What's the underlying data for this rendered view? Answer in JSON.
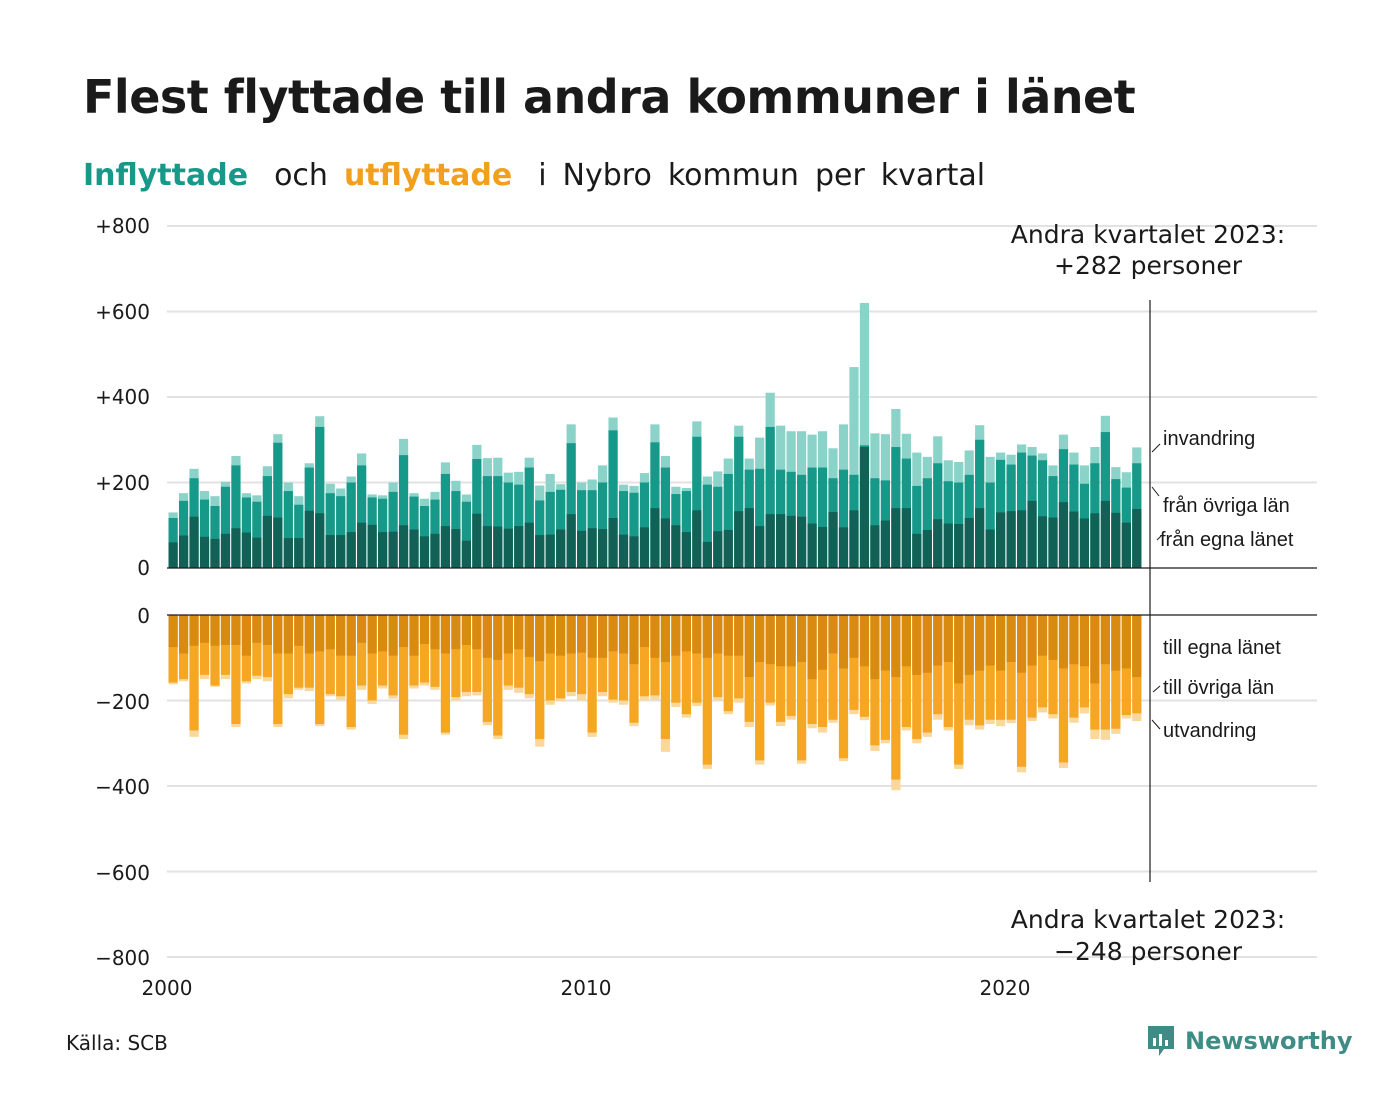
{
  "title": "Flest flyttade till andra kommuner i länet",
  "subtitle": {
    "inflyttade": "Inflyttade",
    "och": "och",
    "utflyttade": "utflyttade",
    "rest": [
      "i",
      "Nybro",
      "kommun",
      "per",
      "kvartal"
    ]
  },
  "annotations": {
    "top_line1": "Andra kvartalet 2023:",
    "top_line2": "+282 personer",
    "bottom_line1": "Andra kvartalet 2023:",
    "bottom_line2": "−248 personer"
  },
  "source": "Källa: SCB",
  "logo": "Newsworthy",
  "colors": {
    "in_egna": "#126156",
    "in_ovriga": "#17998a",
    "in_invandring": "#8bd3c8",
    "out_egna": "#d98a10",
    "out_ovriga": "#f5a623",
    "out_utvandring": "#fad79b",
    "logo": "#3e8c85"
  },
  "chart_data": {
    "type": "bar",
    "stacked": true,
    "period": "quarter",
    "x_start": "2000 Q1",
    "x_end": "2023 Q2",
    "x_ticks": [
      "2000",
      "2010",
      "2020"
    ],
    "y_ticks_upper": [
      "+800",
      "+600",
      "+400",
      "+200",
      "0"
    ],
    "y_ticks_lower": [
      "0",
      "−200",
      "−400",
      "−600",
      "−800"
    ],
    "ylim_upper": [
      0,
      800
    ],
    "ylim_lower": [
      -800,
      0
    ],
    "grid": true,
    "inflyttade": {
      "labels": [
        "från egna länet",
        "från övriga län",
        "invandring"
      ],
      "totals": [
        130,
        175,
        232,
        180,
        168,
        202,
        262,
        175,
        170,
        238,
        313,
        200,
        168,
        245,
        355,
        197,
        186,
        214,
        268,
        172,
        170,
        200,
        302,
        175,
        162,
        178,
        247,
        204,
        172,
        288,
        257,
        258,
        223,
        225,
        258,
        193,
        220,
        196,
        336,
        200,
        207,
        240,
        352,
        195,
        192,
        222,
        336,
        262,
        190,
        187,
        343,
        214,
        226,
        256,
        333,
        256,
        305,
        410,
        333,
        320,
        320,
        312,
        320,
        280,
        336,
        470,
        620,
        315,
        313,
        372,
        314,
        270,
        260,
        308,
        252,
        248,
        275,
        334,
        260,
        270,
        265,
        289,
        283,
        268,
        240,
        312,
        270,
        240,
        283,
        356,
        236,
        224,
        282
      ],
      "egna": [
        60,
        76,
        120,
        73,
        68,
        80,
        93,
        83,
        71,
        122,
        118,
        70,
        70,
        134,
        128,
        77,
        77,
        84,
        106,
        101,
        84,
        85,
        100,
        90,
        74,
        80,
        98,
        91,
        64,
        127,
        98,
        97,
        92,
        98,
        106,
        77,
        78,
        90,
        126,
        87,
        93,
        91,
        117,
        78,
        74,
        95,
        140,
        116,
        100,
        84,
        135,
        61,
        86,
        89,
        133,
        140,
        98,
        126,
        126,
        122,
        120,
        104,
        96,
        131,
        95,
        135,
        283,
        100,
        111,
        140,
        140,
        80,
        89,
        114,
        104,
        103,
        117,
        140,
        90,
        130,
        133,
        135,
        157,
        121,
        118,
        154,
        132,
        116,
        128,
        157,
        129,
        106,
        138
      ],
      "ovriga": [
        117,
        157,
        210,
        160,
        145,
        190,
        240,
        165,
        155,
        215,
        293,
        180,
        148,
        235,
        330,
        175,
        168,
        200,
        240,
        165,
        162,
        178,
        264,
        167,
        145,
        160,
        220,
        180,
        155,
        255,
        215,
        215,
        200,
        195,
        235,
        158,
        178,
        183,
        292,
        182,
        182,
        200,
        322,
        180,
        176,
        200,
        294,
        235,
        173,
        180,
        307,
        195,
        190,
        220,
        307,
        230,
        232,
        330,
        230,
        225,
        218,
        235,
        235,
        210,
        230,
        218,
        287,
        210,
        205,
        283,
        256,
        192,
        210,
        245,
        203,
        200,
        218,
        300,
        200,
        253,
        242,
        270,
        263,
        252,
        215,
        278,
        242,
        197,
        245,
        318,
        208,
        188,
        245
      ]
    },
    "utflyttade": {
      "labels": [
        "till egna länet",
        "till övriga län",
        "utvandring"
      ],
      "totals": [
        -162,
        -155,
        -285,
        -150,
        -168,
        -150,
        -262,
        -160,
        -150,
        -155,
        -262,
        -195,
        -175,
        -178,
        -260,
        -190,
        -198,
        -268,
        -175,
        -208,
        -172,
        -196,
        -290,
        -172,
        -165,
        -175,
        -280,
        -200,
        -190,
        -188,
        -258,
        -290,
        -175,
        -182,
        -195,
        -308,
        -210,
        -202,
        -190,
        -200,
        -285,
        -190,
        -205,
        -210,
        -260,
        -200,
        -198,
        -320,
        -215,
        -240,
        -213,
        -360,
        -200,
        -232,
        -205,
        -262,
        -350,
        -212,
        -260,
        -245,
        -348,
        -265,
        -275,
        -252,
        -342,
        -232,
        -246,
        -318,
        -300,
        -410,
        -270,
        -300,
        -285,
        -245,
        -270,
        -360,
        -258,
        -268,
        -255,
        -260,
        -253,
        -368,
        -248,
        -228,
        -242,
        -358,
        -252,
        -230,
        -290,
        -292,
        -278,
        -242,
        -248
      ],
      "egna": [
        -75,
        -90,
        -72,
        -65,
        -72,
        -70,
        -70,
        -95,
        -65,
        -70,
        -90,
        -90,
        -72,
        -90,
        -85,
        -80,
        -95,
        -95,
        -65,
        -90,
        -85,
        -95,
        -75,
        -95,
        -68,
        -80,
        -90,
        -80,
        -70,
        -80,
        -100,
        -105,
        -90,
        -80,
        -98,
        -108,
        -90,
        -95,
        -90,
        -88,
        -100,
        -100,
        -85,
        -90,
        -115,
        -75,
        -100,
        -110,
        -95,
        -85,
        -90,
        -100,
        -90,
        -95,
        -95,
        -145,
        -110,
        -115,
        -120,
        -120,
        -110,
        -150,
        -128,
        -90,
        -125,
        -100,
        -120,
        -150,
        -130,
        -145,
        -120,
        -140,
        -135,
        -118,
        -110,
        -160,
        -140,
        -130,
        -118,
        -130,
        -110,
        -135,
        -118,
        -95,
        -105,
        -125,
        -115,
        -120,
        -160,
        -115,
        -130,
        -125,
        -145
      ],
      "ovriga": [
        -158,
        -150,
        -270,
        -140,
        -165,
        -140,
        -255,
        -155,
        -142,
        -145,
        -255,
        -185,
        -170,
        -170,
        -255,
        -185,
        -190,
        -262,
        -165,
        -200,
        -165,
        -188,
        -280,
        -165,
        -158,
        -168,
        -275,
        -192,
        -180,
        -180,
        -250,
        -282,
        -165,
        -170,
        -185,
        -290,
        -200,
        -195,
        -180,
        -185,
        -275,
        -180,
        -198,
        -200,
        -252,
        -190,
        -188,
        -290,
        -205,
        -232,
        -205,
        -350,
        -192,
        -225,
        -195,
        -250,
        -340,
        -205,
        -250,
        -236,
        -340,
        -255,
        -262,
        -245,
        -335,
        -222,
        -238,
        -305,
        -292,
        -385,
        -262,
        -290,
        -275,
        -232,
        -262,
        -350,
        -245,
        -258,
        -245,
        -245,
        -245,
        -355,
        -240,
        -216,
        -232,
        -345,
        -240,
        -216,
        -268,
        -268,
        -266,
        -234,
        -230
      ]
    }
  },
  "series_labels": {
    "in_invandring": "invandring",
    "in_ovriga": "från övriga län",
    "in_egna": "från egna länet",
    "out_egna": "till egna länet",
    "out_ovriga": "till övriga län",
    "out_utvandring": "utvandring"
  }
}
